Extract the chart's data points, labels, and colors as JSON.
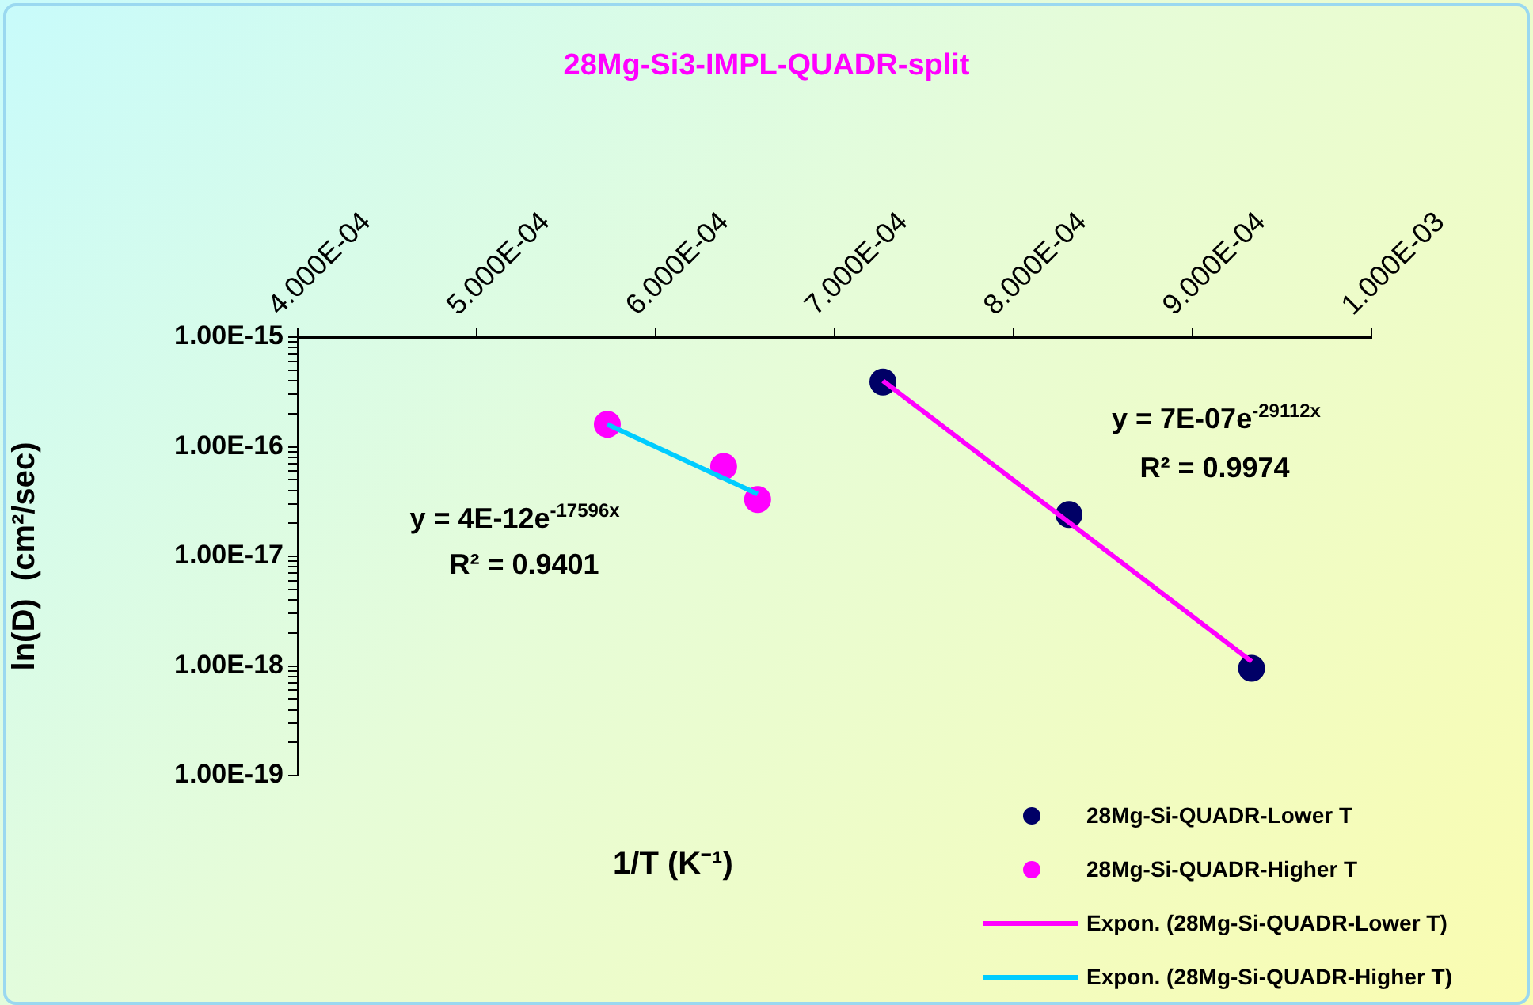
{
  "chart_data": {
    "type": "scatter",
    "title": "28Mg-Si3-IMPL-QUADR-split",
    "xlabel": "1/T (K⁻¹)",
    "ylabel": "ln(D)  (cm²/sec)",
    "log": "y",
    "grid": false,
    "legend": "bottom right",
    "xlim": [
      0.0004,
      0.001
    ],
    "xticks": [
      {
        "value": 0.0004,
        "label": "4.000E-04"
      },
      {
        "value": 0.0005,
        "label": "5.000E-04"
      },
      {
        "value": 0.0006,
        "label": "6.000E-04"
      },
      {
        "value": 0.0007,
        "label": "7.000E-04"
      },
      {
        "value": 0.0008,
        "label": "8.000E-04"
      },
      {
        "value": 0.0009,
        "label": "9.000E-04"
      },
      {
        "value": 0.001,
        "label": "1.000E-03"
      }
    ],
    "ylim": [
      1e-19,
      1e-15
    ],
    "yticks": [
      {
        "value": 1e-19,
        "label": "1.00E-19"
      },
      {
        "value": 2e-19,
        "label": null
      },
      {
        "value": 3e-19,
        "label": null
      },
      {
        "value": 4e-19,
        "label": null
      },
      {
        "value": 5e-19,
        "label": null
      },
      {
        "value": 6e-19,
        "label": null
      },
      {
        "value": 7e-19,
        "label": null
      },
      {
        "value": 8e-19,
        "label": null
      },
      {
        "value": 9e-19,
        "label": null
      },
      {
        "value": 1e-18,
        "label": "1.00E-18"
      },
      {
        "value": 2e-18,
        "label": null
      },
      {
        "value": 3e-18,
        "label": null
      },
      {
        "value": 4e-18,
        "label": null
      },
      {
        "value": 5e-18,
        "label": null
      },
      {
        "value": 6e-18,
        "label": null
      },
      {
        "value": 7e-18,
        "label": null
      },
      {
        "value": 8e-18,
        "label": null
      },
      {
        "value": 9e-18,
        "label": null
      },
      {
        "value": 1e-17,
        "label": "1.00E-17"
      },
      {
        "value": 2e-17,
        "label": null
      },
      {
        "value": 3e-17,
        "label": null
      },
      {
        "value": 4e-17,
        "label": null
      },
      {
        "value": 5e-17,
        "label": null
      },
      {
        "value": 6e-17,
        "label": null
      },
      {
        "value": 7e-17,
        "label": null
      },
      {
        "value": 8e-17,
        "label": null
      },
      {
        "value": 9e-17,
        "label": null
      },
      {
        "value": 1e-16,
        "label": "1.00E-16"
      },
      {
        "value": 2e-16,
        "label": null
      },
      {
        "value": 3e-16,
        "label": null
      },
      {
        "value": 4e-16,
        "label": null
      },
      {
        "value": 5e-16,
        "label": null
      },
      {
        "value": 6e-16,
        "label": null
      },
      {
        "value": 7e-16,
        "label": null
      },
      {
        "value": 8e-16,
        "label": null
      },
      {
        "value": 9e-16,
        "label": null
      },
      {
        "value": 1e-15,
        "label": "1.00E-15"
      }
    ],
    "series": [
      {
        "name": "28Mg-Si-QUADR-Lower T",
        "marker": "circle",
        "color": "#000066",
        "x": [
          0.000727,
          0.000831,
          0.000933
        ],
        "values": [
          3.9e-16,
          2.4e-17,
          9.5e-19
        ]
      },
      {
        "name": "28Mg-Si-QUADR-Higher T",
        "marker": "circle",
        "color": "#ff00ff",
        "x": [
          0.000573,
          0.000638,
          0.000657
        ],
        "values": [
          1.6e-16,
          6.6e-17,
          3.3e-17
        ]
      },
      {
        "name": "Expon. (28Mg-Si-QUADR-Lower T)",
        "type": "line",
        "marker": "none",
        "color": "#ff00ff",
        "x": [
          0.000727,
          0.000933
        ],
        "values": [
          4e-16,
          1.1e-18
        ]
      },
      {
        "name": "Expon. (28Mg-Si-QUADR-Higher T)",
        "type": "line",
        "marker": "none",
        "color": "#00ccff",
        "x": [
          0.000573,
          0.000657
        ],
        "values": [
          1.6e-16,
          3.7e-17
        ]
      }
    ],
    "annotations": [
      "y = 4E-12e$^{-17596x}$",
      "R² = 0.9401",
      "y = 7E-07e$^{-29112x}$",
      "R² = 0.9974"
    ]
  }
}
